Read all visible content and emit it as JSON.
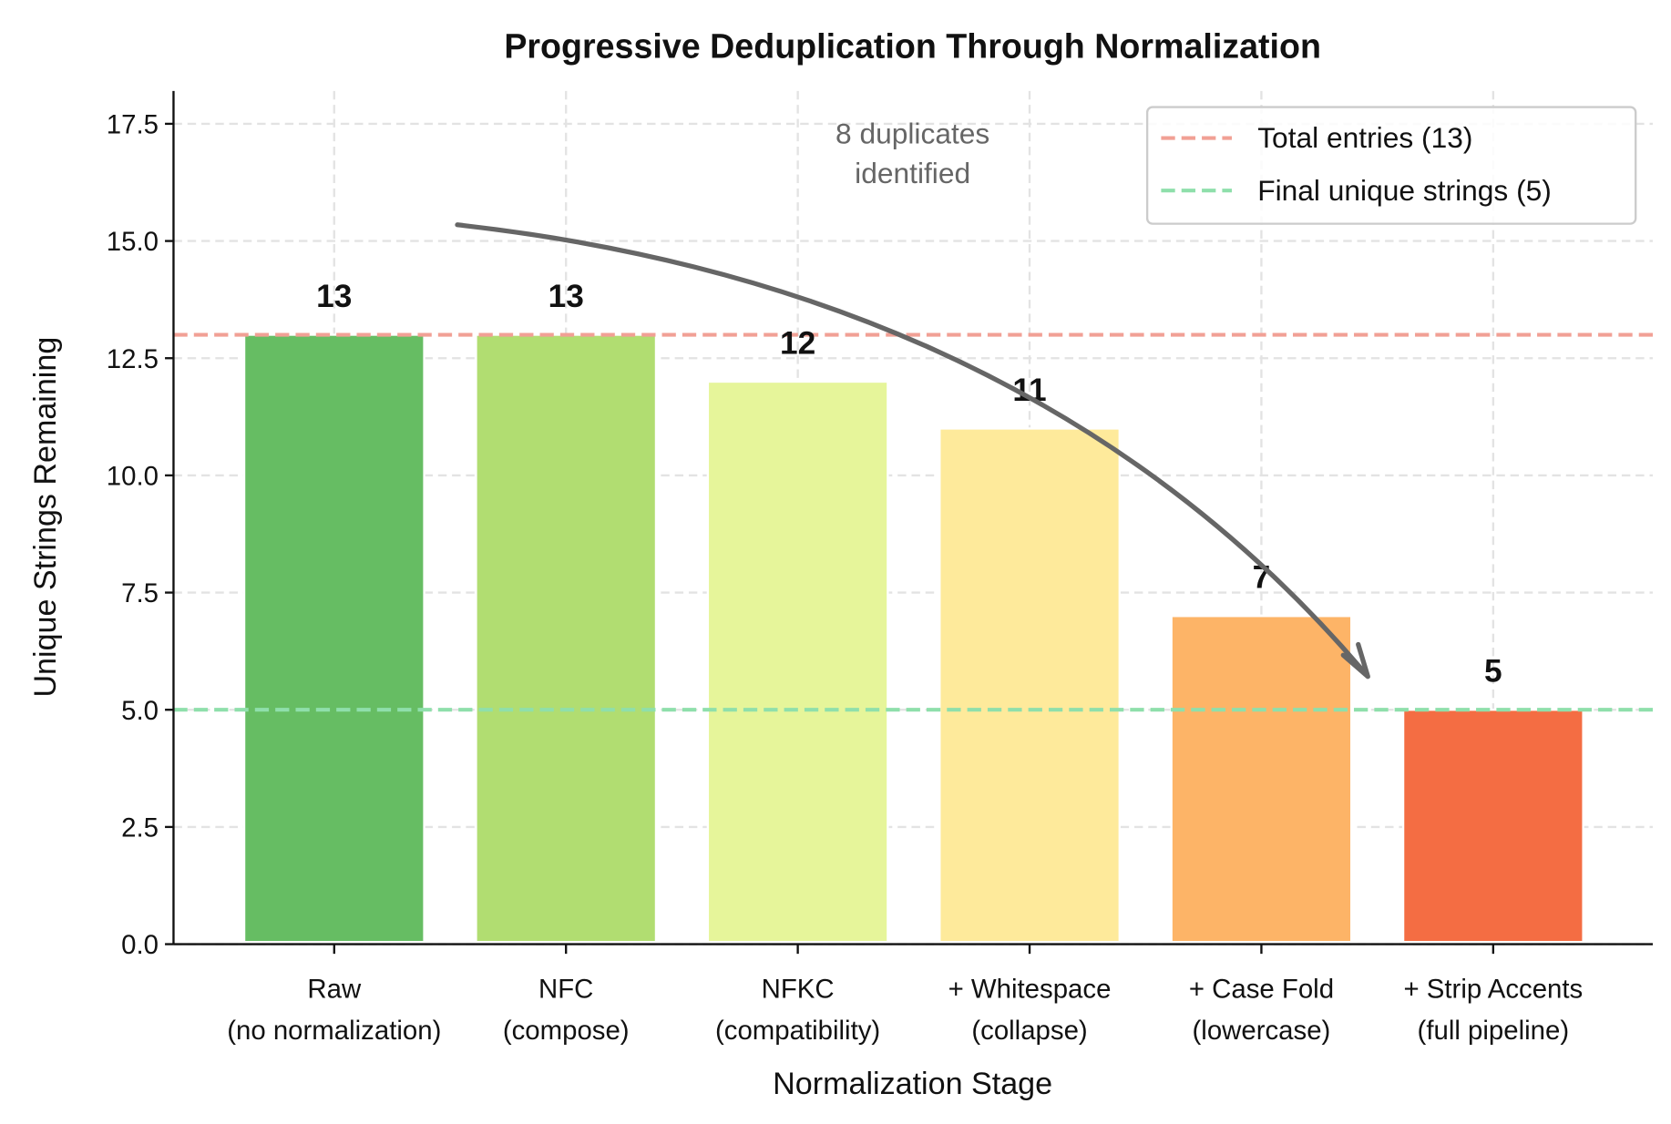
{
  "chart_data": {
    "type": "bar",
    "title": "Progressive Deduplication Through Normalization",
    "xlabel": "Normalization Stage",
    "ylabel": "Unique Strings Remaining",
    "categories": [
      [
        "Raw",
        "(no normalization)"
      ],
      [
        "NFC",
        "(compose)"
      ],
      [
        "NFKC",
        "(compatibility)"
      ],
      [
        "+ Whitespace",
        "(collapse)"
      ],
      [
        "+ Case Fold",
        "(lowercase)"
      ],
      [
        "+ Strip Accents",
        "(full pipeline)"
      ]
    ],
    "values": [
      13,
      13,
      12,
      11,
      7,
      5
    ],
    "data_labels": [
      "13",
      "13",
      "12",
      "11",
      "7",
      "5"
    ],
    "bar_colors": [
      "#66bd63",
      "#b1dd71",
      "#e6f59a",
      "#feea9b",
      "#fdb467",
      "#f46d43"
    ],
    "ylim": [
      0,
      18.2
    ],
    "yticks": [
      "0.0",
      "2.5",
      "5.0",
      "7.5",
      "10.0",
      "12.5",
      "15.0",
      "17.5"
    ],
    "grid": true,
    "reference_lines": [
      {
        "name": "Total entries (13)",
        "y": 13,
        "color": "#f1a095",
        "style": "dashed"
      },
      {
        "name": "Final unique strings (5)",
        "y": 5,
        "color": "#8fdfab",
        "style": "dashed"
      }
    ],
    "legend_position": "top-right",
    "annotation": {
      "lines": [
        "8 duplicates",
        "identified"
      ],
      "arrow": "curved arrow from Raw stage down to Strip Accents stage",
      "color": "#666666"
    }
  }
}
